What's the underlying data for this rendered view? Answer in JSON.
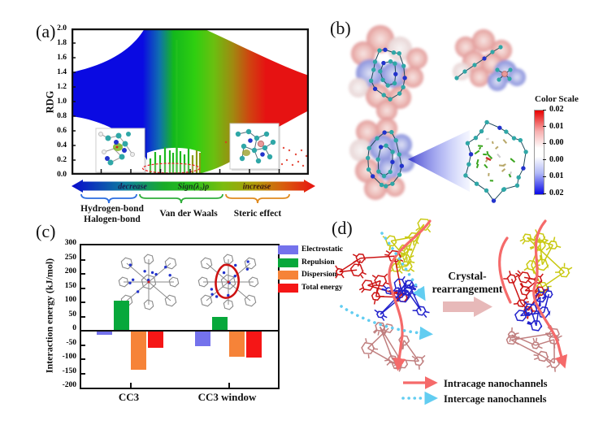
{
  "figure": {
    "panels": {
      "a": {
        "label": "(a)",
        "ylabel": "RDG",
        "yticks": [
          "2.0",
          "1.8",
          "1.6",
          "1.4",
          "1.2",
          "1.0",
          "0.8",
          "0.6",
          "0.4",
          "0.2",
          "0.0"
        ],
        "axis_arrow": {
          "decrease": "decrease",
          "center": "Sign(λ₂)ρ",
          "increase": "increase"
        },
        "regions": [
          {
            "line1": "Hydrogen-bond",
            "line2": "Halogen-bond"
          },
          {
            "line1": "Van der Waals",
            "line2": ""
          },
          {
            "line1": "Steric effect",
            "line2": ""
          }
        ]
      },
      "b": {
        "label": "(b)",
        "color_scale": {
          "title": "Color Scale",
          "ticks": [
            "0.02",
            "0.01",
            "0.00",
            "0.00",
            "0.01",
            "0.02"
          ],
          "top_color": "#e80000",
          "mid_color": "#ffffff",
          "bottom_color": "#0808e8"
        }
      },
      "c": {
        "label": "(c)"
      },
      "d": {
        "label": "(d)",
        "arrow_line1": "Crystal-",
        "arrow_line2": "rearrangement",
        "cage_colors": [
          "#c9c911",
          "#cc1414",
          "#2222cc",
          "#c07f7f"
        ],
        "legend": [
          {
            "label": "Intracage nanochannels",
            "color": "#f56a6a",
            "style": "solid"
          },
          {
            "label": "Intercage nanochannels",
            "color": "#62cdf1",
            "style": "dotted"
          }
        ]
      }
    }
  },
  "chart_data": [
    {
      "type": "scatter",
      "title": "RDG analysis plot",
      "xlabel": "Sign(λ₂)ρ",
      "ylabel": "RDG",
      "ylim": [
        0.0,
        2.0
      ],
      "ytick_step": 0.2,
      "x_regions": [
        {
          "label": "Hydrogen-bond / Halogen-bond",
          "color_zone": "blue",
          "meaning": "decrease"
        },
        {
          "label": "Van der Waals",
          "color_zone": "green"
        },
        {
          "label": "Steric effect",
          "color_zone": "red",
          "meaning": "increase"
        }
      ],
      "legend_position": "none",
      "grid": false
    },
    {
      "type": "bar",
      "categories": [
        "CC3",
        "CC3 window"
      ],
      "series": [
        {
          "name": "Electrostatic",
          "color": "#7472ec",
          "values": [
            -15,
            -55
          ]
        },
        {
          "name": "Repulsion",
          "color": "#07a83b",
          "values": [
            107,
            50
          ]
        },
        {
          "name": "Dispersion",
          "color": "#f68338",
          "values": [
            -138,
            -90
          ]
        },
        {
          "name": "Total energy",
          "color": "#f51616",
          "values": [
            -60,
            -93
          ]
        }
      ],
      "ylabel": "Interaction energy (kJ/mol)",
      "ylim": [
        -200,
        300
      ],
      "yticks": [
        300,
        250,
        200,
        150,
        100,
        50,
        0,
        -50,
        -100,
        -150,
        -200
      ],
      "legend_position": "upper right",
      "grid": false
    }
  ]
}
